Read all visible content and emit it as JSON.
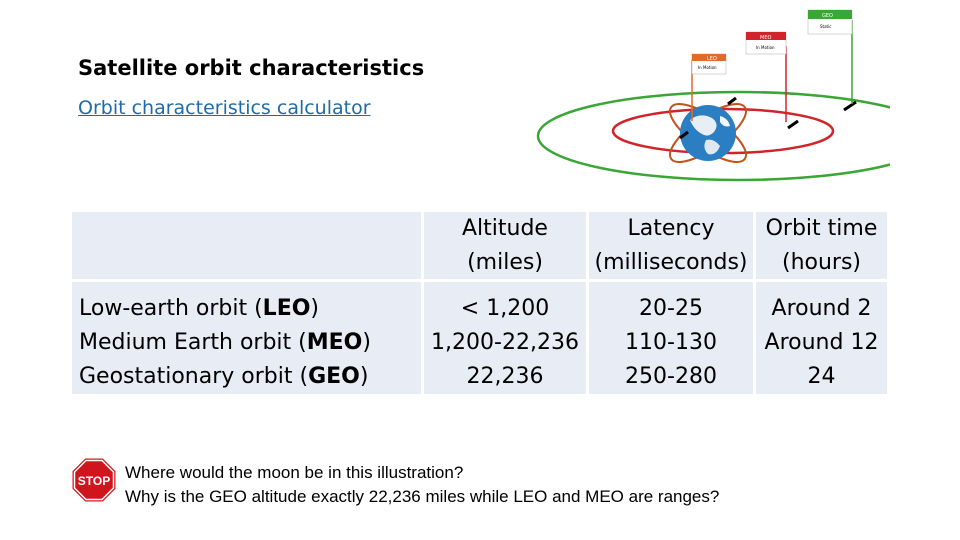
{
  "slide": {
    "title": "Satellite orbit characteristics",
    "link_text": "Orbit characteristics calculator"
  },
  "diagram": {
    "labels": [
      {
        "name": "GEO",
        "sub": "Static",
        "color": "#3aa635"
      },
      {
        "name": "MEO",
        "sub": "In Motion",
        "color": "#d1232a"
      },
      {
        "name": "LEO",
        "sub": "In Motion",
        "color": "#e06a27"
      }
    ]
  },
  "table": {
    "headers": {
      "altitude": [
        "Altitude",
        "(miles)"
      ],
      "latency": [
        "Latency",
        "(milliseconds)"
      ],
      "orbit_time": [
        "Orbit time",
        "(hours)"
      ]
    },
    "rows": [
      {
        "name": "Low-earth orbit (",
        "abbr": "LEO",
        "close": ")",
        "altitude": "< 1,200",
        "latency": "20-25",
        "orbit_time": "Around 2"
      },
      {
        "name": "Medium Earth orbit (",
        "abbr": "MEO",
        "close": ")",
        "altitude": "1,200-22,236",
        "latency": "110-130",
        "orbit_time": "Around 12"
      },
      {
        "name": "Geostationary orbit (",
        "abbr": "GEO",
        "close": ")",
        "altitude": "22,236",
        "latency": "250-280",
        "orbit_time": "24"
      }
    ]
  },
  "stop_sign_text": "STOP",
  "questions": [
    "Where would the moon be in this illustration?",
    "Why is the GEO  altitude exactly 22,236 miles while LEO and MEO are ranges?"
  ]
}
